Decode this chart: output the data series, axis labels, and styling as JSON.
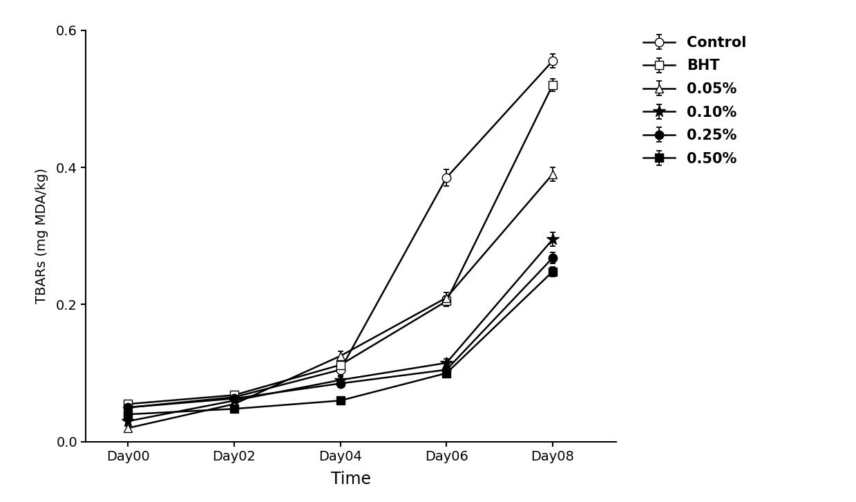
{
  "x_labels": [
    "Day00",
    "Day02",
    "Day04",
    "Day06",
    "Day08"
  ],
  "x_values": [
    0,
    2,
    4,
    6,
    8
  ],
  "series": {
    "Control": {
      "y": [
        0.05,
        0.065,
        0.105,
        0.385,
        0.555
      ],
      "yerr": [
        0.005,
        0.005,
        0.008,
        0.012,
        0.01
      ],
      "marker": "o",
      "markerfacecolor": "white",
      "markeredgecolor": "black",
      "color": "black",
      "label": "Control",
      "markersize": 9
    },
    "BHT": {
      "y": [
        0.055,
        0.068,
        0.112,
        0.205,
        0.52
      ],
      "yerr": [
        0.004,
        0.004,
        0.007,
        0.008,
        0.009
      ],
      "marker": "s",
      "markerfacecolor": "white",
      "markeredgecolor": "black",
      "color": "black",
      "label": "BHT",
      "markersize": 9
    },
    "0.05%": {
      "y": [
        0.02,
        0.055,
        0.125,
        0.21,
        0.39
      ],
      "yerr": [
        0.003,
        0.004,
        0.007,
        0.008,
        0.01
      ],
      "marker": "^",
      "markerfacecolor": "white",
      "markeredgecolor": "black",
      "color": "black",
      "label": "0.05%",
      "markersize": 9
    },
    "0.10%": {
      "y": [
        0.03,
        0.06,
        0.09,
        0.115,
        0.295
      ],
      "yerr": [
        0.003,
        0.004,
        0.005,
        0.006,
        0.01
      ],
      "marker": "*",
      "markerfacecolor": "black",
      "markeredgecolor": "black",
      "color": "black",
      "label": "0.10%",
      "markersize": 13
    },
    "0.25%": {
      "y": [
        0.05,
        0.063,
        0.085,
        0.105,
        0.268
      ],
      "yerr": [
        0.004,
        0.004,
        0.005,
        0.005,
        0.008
      ],
      "marker": "o",
      "markerfacecolor": "black",
      "markeredgecolor": "black",
      "color": "black",
      "label": "0.25%",
      "markersize": 9
    },
    "0.50%": {
      "y": [
        0.04,
        0.048,
        0.06,
        0.1,
        0.248
      ],
      "yerr": [
        0.003,
        0.003,
        0.004,
        0.005,
        0.007
      ],
      "marker": "s",
      "markerfacecolor": "black",
      "markeredgecolor": "black",
      "color": "black",
      "label": "0.50%",
      "markersize": 9
    }
  },
  "xlabel": "Time",
  "ylabel": "TBARs (mg MDA/kg)",
  "ylim": [
    0.0,
    0.6
  ],
  "yticks": [
    0.0,
    0.2,
    0.4,
    0.6
  ],
  "background_color": "#ffffff",
  "linewidth": 1.8,
  "capsize": 3
}
